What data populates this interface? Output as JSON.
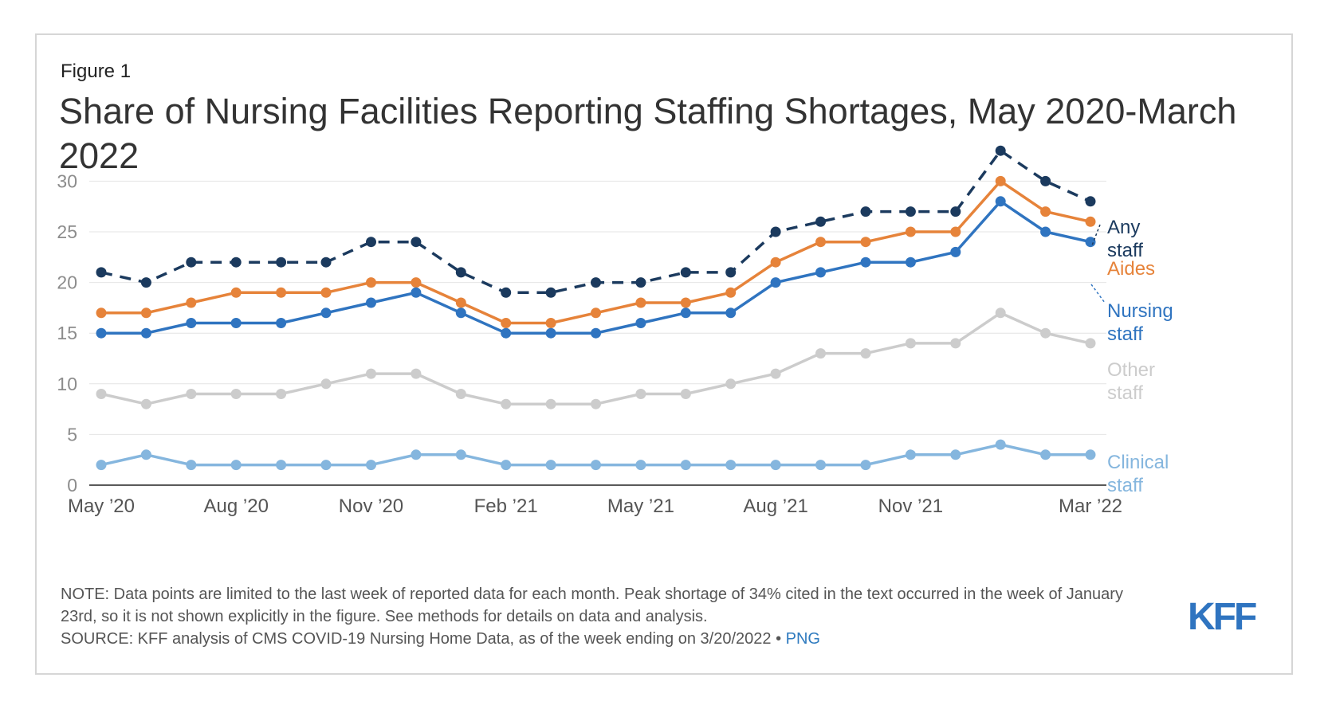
{
  "figure_label": "Figure 1",
  "title": "Share of Nursing Facilities Reporting Staffing Shortages, May 2020-March 2022",
  "note": "NOTE: Data points are limited to the last week of reported data for each month. Peak shortage of 34% cited in the text occurred in the week of January 23rd, so it is not shown explicitly in the figure. See methods for details on data and analysis.",
  "source": "SOURCE: KFF analysis of CMS COVID-19 Nursing Home Data, as of the week ending on 3/20/2022 •",
  "source_link": "PNG",
  "logo_text": "KFF",
  "colors": {
    "any_staff": "#1b3a5e",
    "aides": "#e6833a",
    "nursing_staff": "#2f74c0",
    "other_staff": "#cccccc",
    "clinical_staff": "#85b6de",
    "link": "#2f7bbf",
    "logo": "#2f74c0"
  },
  "chart_data": {
    "type": "line",
    "x": [
      "May 2020",
      "Jun 2020",
      "Jul 2020",
      "Aug 2020",
      "Sep 2020",
      "Oct 2020",
      "Nov 2020",
      "Dec 2020",
      "Jan 2021",
      "Feb 2021",
      "Mar 2021",
      "Apr 2021",
      "May 2021",
      "Jun 2021",
      "Jul 2021",
      "Aug 2021",
      "Sep 2021",
      "Oct 2021",
      "Nov 2021",
      "Dec 2021",
      "Jan 2022",
      "Feb 2022",
      "Mar 2022"
    ],
    "x_tick_labels": [
      {
        "index": 0,
        "label": "May ’20"
      },
      {
        "index": 3,
        "label": "Aug ’20"
      },
      {
        "index": 6,
        "label": "Nov ’20"
      },
      {
        "index": 9,
        "label": "Feb ’21"
      },
      {
        "index": 12,
        "label": "May ’21"
      },
      {
        "index": 15,
        "label": "Aug ’21"
      },
      {
        "index": 18,
        "label": "Nov ’21"
      },
      {
        "index": 22,
        "label": "Mar ’22"
      }
    ],
    "y_ticks": [
      0,
      5,
      10,
      15,
      20,
      25,
      30
    ],
    "ylim": [
      0,
      33
    ],
    "grid": true,
    "legend": "direct labels at line ends",
    "series": [
      {
        "key": "any_staff",
        "label_lines": [
          "Any",
          "staff"
        ],
        "dashed": true,
        "values": [
          21,
          20,
          22,
          22,
          22,
          22,
          24,
          24,
          21,
          19,
          19,
          20,
          20,
          21,
          21,
          25,
          26,
          27,
          27,
          27,
          33,
          30,
          28
        ]
      },
      {
        "key": "aides",
        "label_lines": [
          "Aides"
        ],
        "dashed": false,
        "values": [
          17,
          17,
          18,
          19,
          19,
          19,
          20,
          20,
          18,
          16,
          16,
          17,
          18,
          18,
          19,
          22,
          24,
          24,
          25,
          25,
          30,
          27,
          26
        ]
      },
      {
        "key": "nursing_staff",
        "label_lines": [
          "Nursing",
          "staff"
        ],
        "dashed": false,
        "values": [
          15,
          15,
          16,
          16,
          16,
          17,
          18,
          19,
          17,
          15,
          15,
          15,
          16,
          17,
          17,
          20,
          21,
          22,
          22,
          23,
          28,
          25,
          24
        ]
      },
      {
        "key": "other_staff",
        "label_lines": [
          "Other",
          "staff"
        ],
        "dashed": false,
        "values": [
          9,
          8,
          9,
          9,
          9,
          10,
          11,
          11,
          9,
          8,
          8,
          8,
          9,
          9,
          10,
          11,
          13,
          13,
          14,
          14,
          17,
          15,
          14
        ]
      },
      {
        "key": "clinical_staff",
        "label_lines": [
          "Clinical",
          "staff"
        ],
        "dashed": false,
        "values": [
          2,
          3,
          2,
          2,
          2,
          2,
          2,
          3,
          3,
          2,
          2,
          2,
          2,
          2,
          2,
          2,
          2,
          2,
          3,
          3,
          4,
          3,
          3
        ]
      }
    ]
  }
}
